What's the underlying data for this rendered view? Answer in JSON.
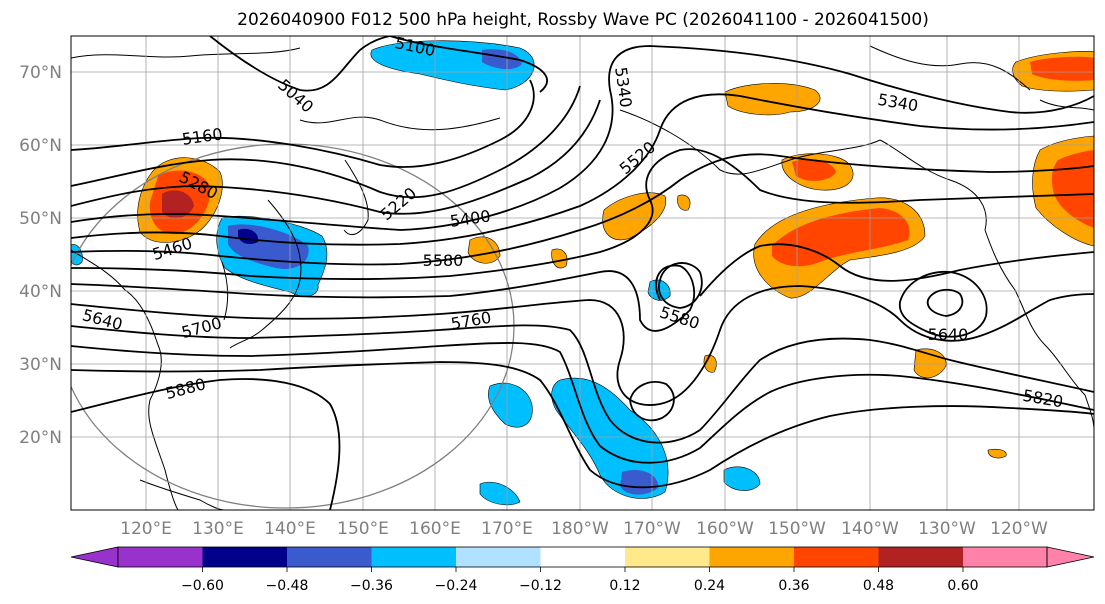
{
  "title": "2026040900 F012 500 hPa height, Rossby Wave PC (2026041100 - 2026041500)",
  "map": {
    "lat_labels": [
      "70°N",
      "60°N",
      "50°N",
      "40°N",
      "30°N",
      "20°N"
    ],
    "lon_labels": [
      "120°E",
      "130°E",
      "140°E",
      "150°E",
      "160°E",
      "170°E",
      "180°W",
      "170°W",
      "160°W",
      "150°W",
      "140°W",
      "130°W",
      "120°W"
    ],
    "contour_labels": [
      "5100",
      "5040",
      "5340",
      "5340",
      "5160",
      "5280",
      "5220",
      "5520",
      "5400",
      "5460",
      "5580",
      "5580",
      "5640",
      "5700",
      "5760",
      "5640",
      "5880",
      "5820"
    ]
  },
  "colorbar": {
    "ticks": [
      "−0.60",
      "−0.48",
      "−0.36",
      "−0.24",
      "−0.12",
      "0.12",
      "0.24",
      "0.36",
      "0.48",
      "0.60"
    ],
    "colors": [
      "#9932cc",
      "#00008b",
      "#3a5bcd",
      "#00bfff",
      "#b0e2ff",
      "#ffffff",
      "#ffe98a",
      "#ffa500",
      "#ff4500",
      "#b22222",
      "#ff82ab"
    ]
  }
}
